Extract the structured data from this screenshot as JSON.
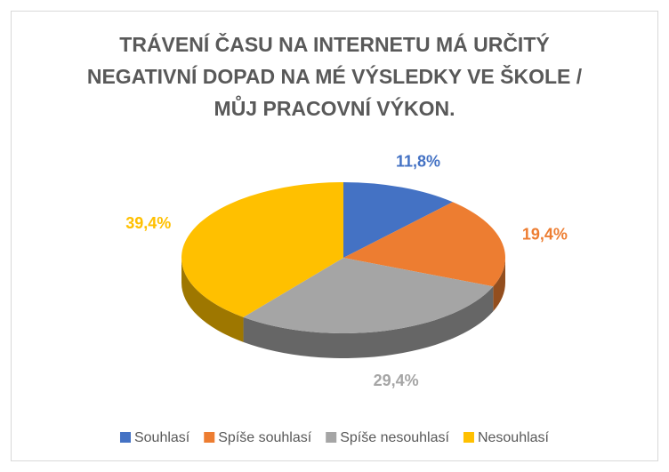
{
  "chart_data": {
    "type": "pie3d",
    "title": "TRÁVENÍ ČASU NA INTERNETU MÁ URČITÝ NEGATIVNÍ DOPAD NA MÉ VÝSLEDKY VE ŠKOLE / MŮJ PRACOVNÍ VÝKON.",
    "categories": [
      "Souhlasí",
      "Spíše souhlasí",
      "Spíše nesouhlasí",
      "Nesouhlasí"
    ],
    "values": [
      11.8,
      19.4,
      29.4,
      39.4
    ],
    "value_labels": [
      "11,8%",
      "19,4%",
      "29,4%",
      "39,4%"
    ],
    "colors": [
      "#4472c4",
      "#ed7d31",
      "#a5a5a5",
      "#ffc000"
    ],
    "legend": "bottom"
  }
}
